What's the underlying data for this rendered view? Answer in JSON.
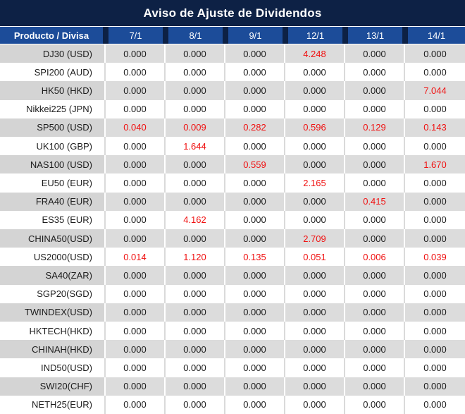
{
  "title": "Aviso de Ajuste de Dividendos",
  "table": {
    "header": {
      "product_label": "Producto / Divisa",
      "dates": [
        "7/1",
        "8/1",
        "9/1",
        "12/1",
        "13/1",
        "14/1"
      ]
    },
    "rows": [
      {
        "product": "DJ30 (USD)",
        "values": [
          "0.000",
          "0.000",
          "0.000",
          "4.248",
          "0.000",
          "0.000"
        ],
        "red": [
          false,
          false,
          false,
          true,
          false,
          false
        ]
      },
      {
        "product": "SPI200 (AUD)",
        "values": [
          "0.000",
          "0.000",
          "0.000",
          "0.000",
          "0.000",
          "0.000"
        ],
        "red": [
          false,
          false,
          false,
          false,
          false,
          false
        ]
      },
      {
        "product": "HK50 (HKD)",
        "values": [
          "0.000",
          "0.000",
          "0.000",
          "0.000",
          "0.000",
          "7.044"
        ],
        "red": [
          false,
          false,
          false,
          false,
          false,
          true
        ]
      },
      {
        "product": "Nikkei225 (JPN)",
        "values": [
          "0.000",
          "0.000",
          "0.000",
          "0.000",
          "0.000",
          "0.000"
        ],
        "red": [
          false,
          false,
          false,
          false,
          false,
          false
        ]
      },
      {
        "product": "SP500 (USD)",
        "values": [
          "0.040",
          "0.009",
          "0.282",
          "0.596",
          "0.129",
          "0.143"
        ],
        "red": [
          true,
          true,
          true,
          true,
          true,
          true
        ]
      },
      {
        "product": "UK100 (GBP)",
        "values": [
          "0.000",
          "1.644",
          "0.000",
          "0.000",
          "0.000",
          "0.000"
        ],
        "red": [
          false,
          true,
          false,
          false,
          false,
          false
        ]
      },
      {
        "product": "NAS100 (USD)",
        "values": [
          "0.000",
          "0.000",
          "0.559",
          "0.000",
          "0.000",
          "1.670"
        ],
        "red": [
          false,
          false,
          true,
          false,
          false,
          true
        ]
      },
      {
        "product": "EU50 (EUR)",
        "values": [
          "0.000",
          "0.000",
          "0.000",
          "2.165",
          "0.000",
          "0.000"
        ],
        "red": [
          false,
          false,
          false,
          true,
          false,
          false
        ]
      },
      {
        "product": "FRA40 (EUR)",
        "values": [
          "0.000",
          "0.000",
          "0.000",
          "0.000",
          "0.415",
          "0.000"
        ],
        "red": [
          false,
          false,
          false,
          false,
          true,
          false
        ]
      },
      {
        "product": "ES35 (EUR)",
        "values": [
          "0.000",
          "4.162",
          "0.000",
          "0.000",
          "0.000",
          "0.000"
        ],
        "red": [
          false,
          true,
          false,
          false,
          false,
          false
        ]
      },
      {
        "product": "CHINA50(USD)",
        "values": [
          "0.000",
          "0.000",
          "0.000",
          "2.709",
          "0.000",
          "0.000"
        ],
        "red": [
          false,
          false,
          false,
          true,
          false,
          false
        ]
      },
      {
        "product": "US2000(USD)",
        "values": [
          "0.014",
          "1.120",
          "0.135",
          "0.051",
          "0.006",
          "0.039"
        ],
        "red": [
          true,
          true,
          true,
          true,
          true,
          true
        ]
      },
      {
        "product": "SA40(ZAR)",
        "values": [
          "0.000",
          "0.000",
          "0.000",
          "0.000",
          "0.000",
          "0.000"
        ],
        "red": [
          false,
          false,
          false,
          false,
          false,
          false
        ]
      },
      {
        "product": "SGP20(SGD)",
        "values": [
          "0.000",
          "0.000",
          "0.000",
          "0.000",
          "0.000",
          "0.000"
        ],
        "red": [
          false,
          false,
          false,
          false,
          false,
          false
        ]
      },
      {
        "product": "TWINDEX(USD)",
        "values": [
          "0.000",
          "0.000",
          "0.000",
          "0.000",
          "0.000",
          "0.000"
        ],
        "red": [
          false,
          false,
          false,
          false,
          false,
          false
        ]
      },
      {
        "product": "HKTECH(HKD)",
        "values": [
          "0.000",
          "0.000",
          "0.000",
          "0.000",
          "0.000",
          "0.000"
        ],
        "red": [
          false,
          false,
          false,
          false,
          false,
          false
        ]
      },
      {
        "product": "CHINAH(HKD)",
        "values": [
          "0.000",
          "0.000",
          "0.000",
          "0.000",
          "0.000",
          "0.000"
        ],
        "red": [
          false,
          false,
          false,
          false,
          false,
          false
        ]
      },
      {
        "product": "IND50(USD)",
        "values": [
          "0.000",
          "0.000",
          "0.000",
          "0.000",
          "0.000",
          "0.000"
        ],
        "red": [
          false,
          false,
          false,
          false,
          false,
          false
        ]
      },
      {
        "product": "SWI20(CHF)",
        "values": [
          "0.000",
          "0.000",
          "0.000",
          "0.000",
          "0.000",
          "0.000"
        ],
        "red": [
          false,
          false,
          false,
          false,
          false,
          false
        ]
      },
      {
        "product": "NETH25(EUR)",
        "values": [
          "0.000",
          "0.000",
          "0.000",
          "0.000",
          "0.000",
          "0.000"
        ],
        "red": [
          false,
          false,
          false,
          false,
          false,
          false
        ]
      }
    ]
  },
  "colors": {
    "title_bg": "#0d2145",
    "header_bg": "#1c4c99",
    "row_gray": "#dcdcdc",
    "row_gray_first": "#d4d4d4",
    "red": "#f01111",
    "text": "#1c1c1c"
  }
}
